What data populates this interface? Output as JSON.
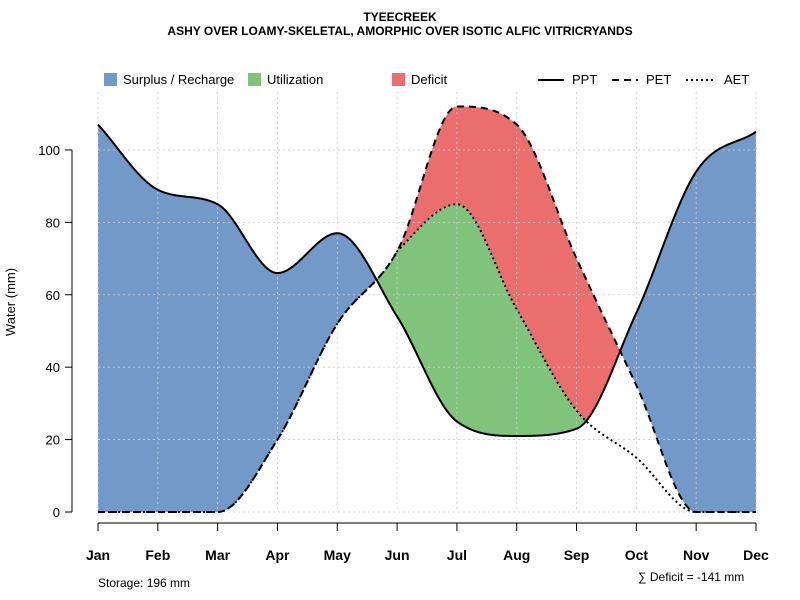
{
  "chart_data": {
    "type": "area",
    "title": "TYEECREEK",
    "subtitle": "ASHY OVER LOAMY-SKELETAL, AMORPHIC OVER ISOTIC ALFIC VITRICRYANDS",
    "xlabel": "",
    "ylabel": "Water (mm)",
    "categories": [
      "Jan",
      "Feb",
      "Mar",
      "Apr",
      "May",
      "Jun",
      "Jul",
      "Aug",
      "Sep",
      "Oct",
      "Nov",
      "Dec"
    ],
    "yticks": [
      0,
      20,
      40,
      60,
      80,
      100
    ],
    "ylim": [
      0,
      116
    ],
    "grid": true,
    "series": [
      {
        "name": "PPT",
        "style": "solid",
        "values": [
          107,
          89,
          85,
          66,
          77,
          54,
          25,
          21,
          23,
          55,
          94,
          105
        ]
      },
      {
        "name": "PET",
        "style": "dashed",
        "values": [
          0,
          0,
          0,
          20,
          52,
          72,
          112,
          107,
          70,
          35,
          0,
          0
        ]
      },
      {
        "name": "AET",
        "style": "dotted",
        "values": [
          0,
          0,
          0,
          20,
          52,
          72,
          85,
          56,
          28,
          15,
          0,
          0
        ]
      }
    ],
    "legend": {
      "areas": [
        {
          "label": "Surplus / Recharge",
          "color": "#7399C8"
        },
        {
          "label": "Utilization",
          "color": "#80C47C"
        },
        {
          "label": "Deficit",
          "color": "#EA6E6E"
        }
      ],
      "lines": [
        {
          "label": "PPT",
          "style": "solid"
        },
        {
          "label": "PET",
          "style": "dashed"
        },
        {
          "label": "AET",
          "style": "dotted"
        }
      ]
    },
    "annotations": {
      "storage": "Storage: 196 mm",
      "deficit": "∑ Deficit = -141 mm"
    }
  }
}
